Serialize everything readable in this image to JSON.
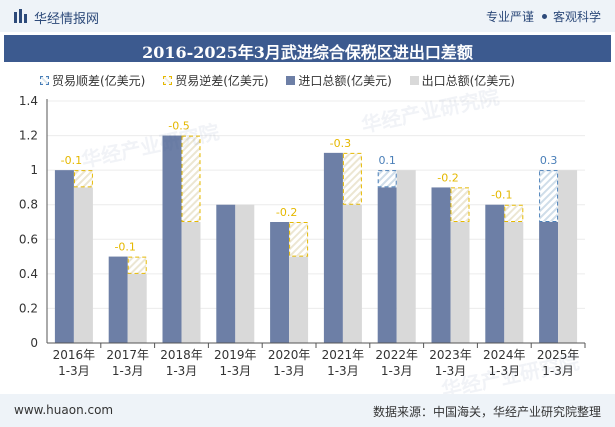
{
  "brand": {
    "name": "华经情报网",
    "slogan_left": "专业严谨",
    "slogan_right": "客观科学"
  },
  "watermark_text": "华经产业研究院",
  "footer": {
    "website": "www.huaon.com",
    "source": "数据来源：中国海关，华经产业研究院整理"
  },
  "colors": {
    "import": "#6d7fa6",
    "export": "#d9d9d9",
    "surplus": "#4a7fb8",
    "deficit": "#e5b800",
    "title_bg": "#3c5a8f"
  },
  "chart_data": {
    "type": "bar",
    "title": "2016-2025年3月武进综合保税区进出口差额",
    "xlabel": "",
    "ylabel": "",
    "ylim": [
      0,
      1.4
    ],
    "yticks": [
      "0",
      "0.2",
      "0.4",
      "0.6",
      "0.8",
      "1",
      "1.2",
      "1.4"
    ],
    "categories": [
      "2016年\n1-3月",
      "2017年\n1-3月",
      "2018年\n1-3月",
      "2019年\n1-3月",
      "2020年\n1-3月",
      "2021年\n1-3月",
      "2022年\n1-3月",
      "2023年\n1-3月",
      "2024年\n1-3月",
      "2025年\n1-3月"
    ],
    "legend": [
      "贸易顺差(亿美元)",
      "贸易逆差(亿美元)",
      "进口总额(亿美元)",
      "出口总额(亿美元)"
    ],
    "series": [
      {
        "name": "进口总额(亿美元)",
        "values": [
          1.0,
          0.5,
          1.2,
          0.8,
          0.7,
          1.1,
          0.9,
          0.9,
          0.8,
          0.7
        ]
      },
      {
        "name": "出口总额(亿美元)",
        "values": [
          0.9,
          0.4,
          0.7,
          0.8,
          0.5,
          0.8,
          1.0,
          0.7,
          0.7,
          1.0
        ]
      }
    ],
    "balance": [
      -0.1,
      -0.1,
      -0.5,
      0,
      -0.2,
      -0.3,
      0.1,
      -0.2,
      -0.1,
      0.3
    ],
    "balance_labels": [
      "-0.1",
      "-0.1",
      "-0.5",
      "",
      "-0.2",
      "-0.3",
      "0.1",
      "-0.2",
      "-0.1",
      "0.3"
    ]
  }
}
